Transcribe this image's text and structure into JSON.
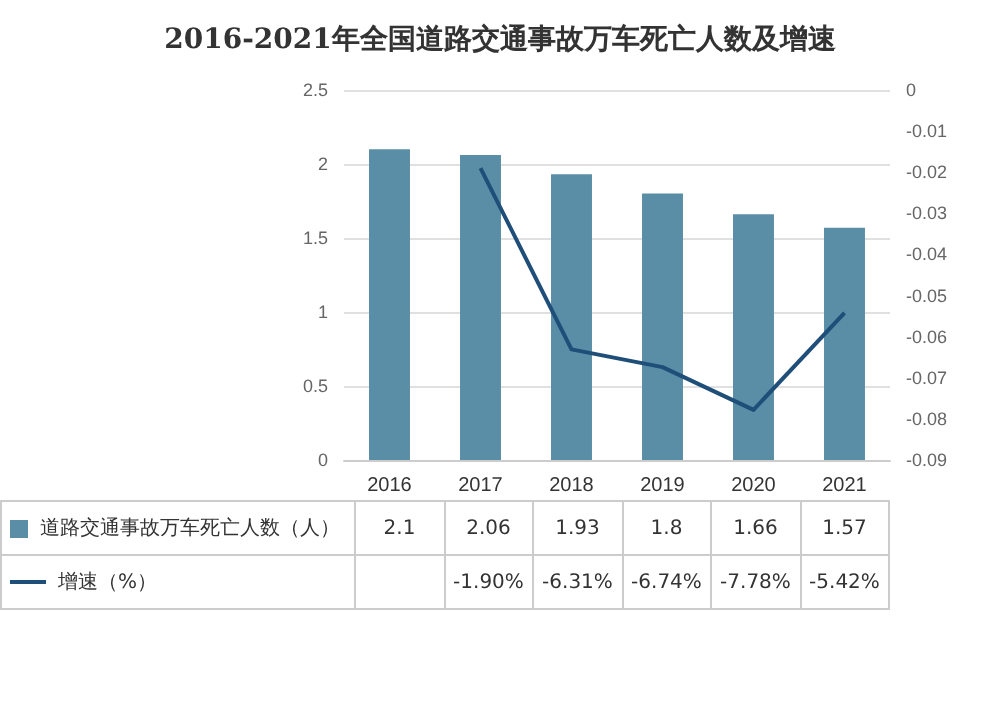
{
  "chart_data": {
    "type": "bar",
    "title": "2016-2021年全国道路交通事故万车死亡人数及增速",
    "categories": [
      "2016",
      "2017",
      "2018",
      "2019",
      "2020",
      "2021"
    ],
    "series": [
      {
        "name": "道路交通事故万车死亡人数（人）",
        "color": "#5a8ea6",
        "values": [
          2.1,
          2.06,
          1.93,
          1.8,
          1.66,
          1.57
        ],
        "value_labels": [
          "2.1",
          "2.06",
          "1.93",
          "1.8",
          "1.66",
          "1.57"
        ]
      },
      {
        "name": "增速（%）",
        "type": "line",
        "axis": "y2",
        "color": "#1f4e79",
        "values": [
          null,
          -0.019,
          -0.0631,
          -0.0674,
          -0.0778,
          -0.0542
        ],
        "value_labels": [
          null,
          "-1.90%",
          "-6.31%",
          "-6.74%",
          "-7.78%",
          "-5.42%"
        ]
      }
    ],
    "ylim": [
      0,
      2.5
    ],
    "yticks": [
      0,
      0.5,
      1,
      1.5,
      2,
      2.5
    ],
    "y2lim": [
      -0.09,
      0
    ],
    "y2ticks": [
      0,
      -0.01,
      -0.02,
      -0.03,
      -0.04,
      -0.05,
      -0.06,
      -0.07,
      -0.08,
      -0.09
    ],
    "grid": "y",
    "legend": "bottom",
    "marker": "none",
    "line_style": "solid"
  }
}
